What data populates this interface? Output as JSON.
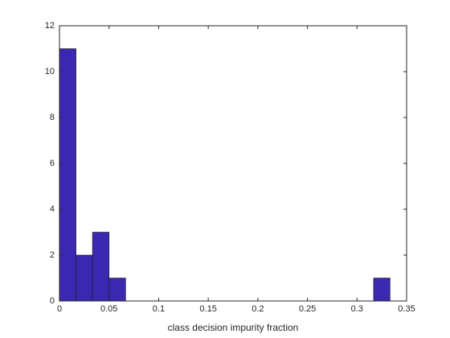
{
  "chart_data": {
    "type": "histogram",
    "xlabel": "class decision impurity fraction",
    "bins": [
      0,
      0.0167,
      0.0333,
      0.05,
      0.0667,
      0.0833,
      0.1,
      0.1167,
      0.1333,
      0.15,
      0.1667,
      0.1833,
      0.2,
      0.2167,
      0.2333,
      0.25,
      0.2667,
      0.2833,
      0.3,
      0.3167,
      0.3333
    ],
    "values": [
      11,
      2,
      3,
      1,
      0,
      0,
      0,
      0,
      0,
      0,
      0,
      0,
      0,
      0,
      0,
      0,
      0,
      0,
      0,
      1
    ],
    "color": "#3b28b0",
    "xlim": [
      0,
      0.35
    ],
    "xticks": [
      0,
      0.05,
      0.1,
      0.15,
      0.2,
      0.25,
      0.3,
      0.35
    ],
    "ylim": [
      0,
      12
    ],
    "yticks": [
      0,
      2,
      4,
      6,
      8,
      10,
      12
    ]
  }
}
